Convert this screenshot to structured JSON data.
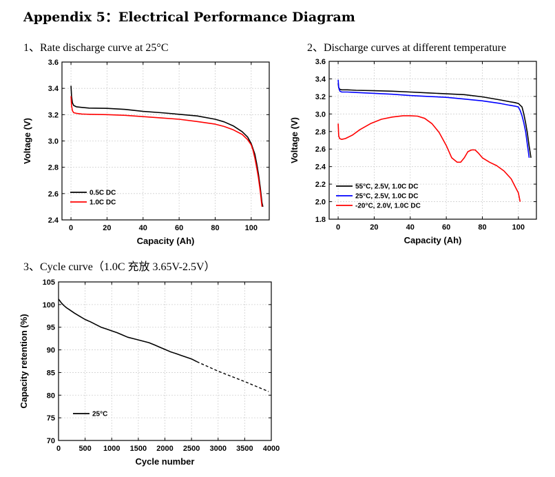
{
  "page": {
    "title": "Appendix 5：Electrical Performance Diagram",
    "sub1": "1、Rate discharge curve at 25°C",
    "sub2": "2、Discharge curves at different temperature",
    "sub3": "3、Cycle curve（1.0C 充放 3.65V-2.5V）"
  },
  "chart_data": [
    {
      "type": "line",
      "xlabel": "Capacity (Ah)",
      "ylabel": "Voltage (V)",
      "xlim": [
        -5,
        110
      ],
      "ylim": [
        2.4,
        3.6
      ],
      "xticks": [
        0,
        20,
        40,
        60,
        80,
        100
      ],
      "yticks": [
        2.4,
        2.6,
        2.8,
        3.0,
        3.2,
        3.4,
        3.6
      ],
      "grid": true,
      "legend_position": "bottom-left",
      "series": [
        {
          "name": "0.5C DC",
          "color": "#000000",
          "x": [
            0,
            0.3,
            0.8,
            1.5,
            3,
            6,
            10,
            20,
            30,
            40,
            50,
            60,
            70,
            80,
            85,
            90,
            95,
            98,
            100,
            102,
            103,
            104,
            105,
            105.5,
            106,
            106.5
          ],
          "y": [
            3.42,
            3.34,
            3.29,
            3.27,
            3.26,
            3.255,
            3.25,
            3.248,
            3.24,
            3.225,
            3.215,
            3.203,
            3.19,
            3.165,
            3.145,
            3.115,
            3.07,
            3.03,
            2.98,
            2.9,
            2.83,
            2.75,
            2.65,
            2.59,
            2.53,
            2.5
          ]
        },
        {
          "name": "1.0C DC",
          "color": "#ff0000",
          "x": [
            0,
            0.3,
            0.8,
            1.5,
            3,
            6,
            10,
            20,
            30,
            40,
            50,
            60,
            70,
            80,
            85,
            90,
            95,
            98,
            100,
            101,
            102,
            103,
            104,
            105,
            105.5,
            106
          ],
          "y": [
            3.34,
            3.27,
            3.23,
            3.215,
            3.21,
            3.205,
            3.203,
            3.2,
            3.195,
            3.185,
            3.175,
            3.165,
            3.148,
            3.128,
            3.11,
            3.085,
            3.05,
            3.01,
            2.97,
            2.93,
            2.87,
            2.8,
            2.72,
            2.62,
            2.56,
            2.5
          ]
        }
      ]
    },
    {
      "type": "line",
      "xlabel": "Capacity (Ah)",
      "ylabel": "Voltage (V)",
      "xlim": [
        -5,
        110
      ],
      "ylim": [
        1.8,
        3.6
      ],
      "xticks": [
        0,
        20,
        40,
        60,
        80,
        100
      ],
      "yticks": [
        1.8,
        2.0,
        2.2,
        2.4,
        2.6,
        2.8,
        3.0,
        3.2,
        3.4,
        3.6
      ],
      "grid": true,
      "legend_position": "bottom-left",
      "series": [
        {
          "name": "55°C, 2.5V, 1.0C DC",
          "color": "#000000",
          "x": [
            0,
            0.3,
            1,
            2,
            5,
            10,
            20,
            30,
            40,
            50,
            60,
            70,
            80,
            90,
            95,
            98,
            100,
            102,
            103,
            104,
            105,
            106,
            107
          ],
          "y": [
            3.35,
            3.3,
            3.28,
            3.275,
            3.275,
            3.27,
            3.265,
            3.26,
            3.25,
            3.24,
            3.23,
            3.22,
            3.195,
            3.16,
            3.14,
            3.13,
            3.12,
            3.08,
            3.0,
            2.9,
            2.78,
            2.63,
            2.5
          ]
        },
        {
          "name": "25°C, 2.5V, 1.0C DC",
          "color": "#0000ff",
          "x": [
            0,
            0.3,
            1,
            2,
            5,
            10,
            20,
            30,
            40,
            50,
            60,
            70,
            80,
            90,
            95,
            98,
            100,
            101,
            102,
            103,
            104,
            105,
            106
          ],
          "y": [
            3.39,
            3.3,
            3.26,
            3.25,
            3.25,
            3.245,
            3.235,
            3.225,
            3.21,
            3.2,
            3.19,
            3.17,
            3.15,
            3.12,
            3.1,
            3.09,
            3.08,
            3.04,
            2.98,
            2.9,
            2.8,
            2.65,
            2.5
          ]
        },
        {
          "name": "-20°C, 2.0V, 1.0C DC",
          "color": "#ff0000",
          "x": [
            0,
            0.3,
            0.8,
            2,
            4,
            8,
            12,
            18,
            24,
            30,
            36,
            40,
            44,
            48,
            52,
            56,
            60,
            63,
            66,
            68,
            70,
            72,
            74,
            76,
            78,
            80,
            84,
            88,
            92,
            96,
            98,
            100,
            101
          ],
          "y": [
            2.89,
            2.75,
            2.72,
            2.71,
            2.72,
            2.76,
            2.82,
            2.89,
            2.94,
            2.965,
            2.98,
            2.98,
            2.975,
            2.95,
            2.89,
            2.79,
            2.64,
            2.5,
            2.45,
            2.45,
            2.5,
            2.57,
            2.59,
            2.59,
            2.55,
            2.5,
            2.45,
            2.41,
            2.35,
            2.26,
            2.18,
            2.1,
            2.0
          ]
        }
      ]
    },
    {
      "type": "line",
      "xlabel": "Cycle number",
      "ylabel": "Capacity retention (%)",
      "xlim": [
        0,
        4000
      ],
      "ylim": [
        70,
        105
      ],
      "xticks": [
        0,
        500,
        1000,
        1500,
        2000,
        2500,
        3000,
        3500,
        4000
      ],
      "yticks": [
        70,
        75,
        80,
        85,
        90,
        95,
        100,
        105
      ],
      "grid": true,
      "legend_position": "bottom-left",
      "series": [
        {
          "name": "25°C",
          "color": "#000000",
          "style": "solid",
          "x": [
            0,
            20,
            50,
            100,
            150,
            200,
            300,
            400,
            500,
            600,
            700,
            800,
            900,
            1000,
            1100,
            1200,
            1300,
            1400,
            1500,
            1600,
            1700,
            1800,
            1900,
            2000,
            2100,
            2200,
            2300,
            2400,
            2500,
            2600
          ],
          "y": [
            101.2,
            100.9,
            100.4,
            99.8,
            99.3,
            98.9,
            98.1,
            97.4,
            96.7,
            96.2,
            95.6,
            95.0,
            94.6,
            94.2,
            93.8,
            93.3,
            92.8,
            92.5,
            92.2,
            91.9,
            91.6,
            91.1,
            90.6,
            90.1,
            89.6,
            89.2,
            88.8,
            88.4,
            88.0,
            87.4
          ]
        },
        {
          "color": "#000000",
          "style": "dashed",
          "x": [
            2600,
            3000,
            3500,
            3950
          ],
          "y": [
            87.4,
            85.3,
            83.0,
            80.8
          ]
        }
      ]
    }
  ]
}
